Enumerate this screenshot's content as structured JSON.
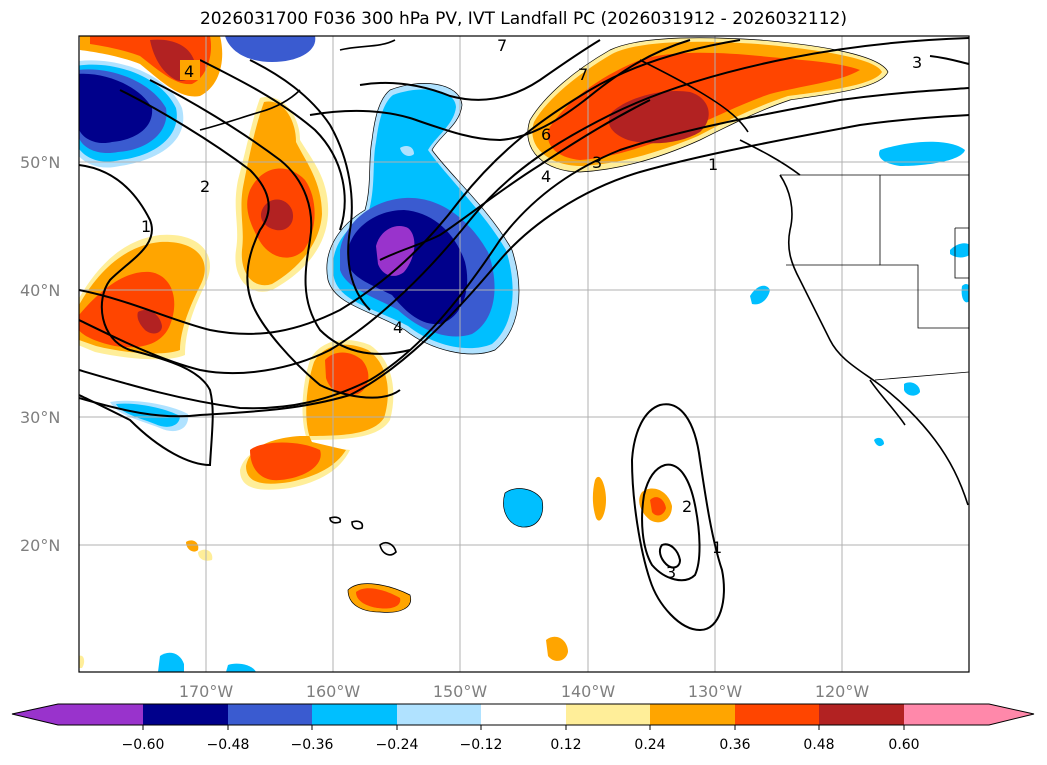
{
  "title": "2026031700 F036 300 hPa PV, IVT Landfall PC (2026031912 - 2026032112)",
  "colors": {
    "c_n06": "#9933cc",
    "c_n048": "#00008b",
    "c_n036": "#3a5bd0",
    "c_n024": "#00bfff",
    "c_n012": "#b0e2ff",
    "c_0": "#ffffff",
    "c_p012": "#ffee99",
    "c_p024": "#ffa500",
    "c_p036": "#ff4500",
    "c_p048": "#b22222",
    "c_p06": "#ff88aa"
  },
  "map": {
    "lat_labels": [
      "50°N",
      "40°N",
      "30°N",
      "20°N"
    ],
    "lon_labels": [
      "170°W",
      "160°W",
      "150°W",
      "140°W",
      "130°W",
      "120°W"
    ],
    "contour_labels": [
      "4",
      "7",
      "7",
      "3",
      "2",
      "1",
      "6",
      "4",
      "3",
      "1",
      "4",
      "2",
      "1",
      "3"
    ]
  },
  "colorbar": {
    "labels": [
      "−0.60",
      "−0.48",
      "−0.36",
      "−0.24",
      "−0.12",
      "0.12",
      "0.24",
      "0.36",
      "0.48",
      "0.60"
    ]
  }
}
